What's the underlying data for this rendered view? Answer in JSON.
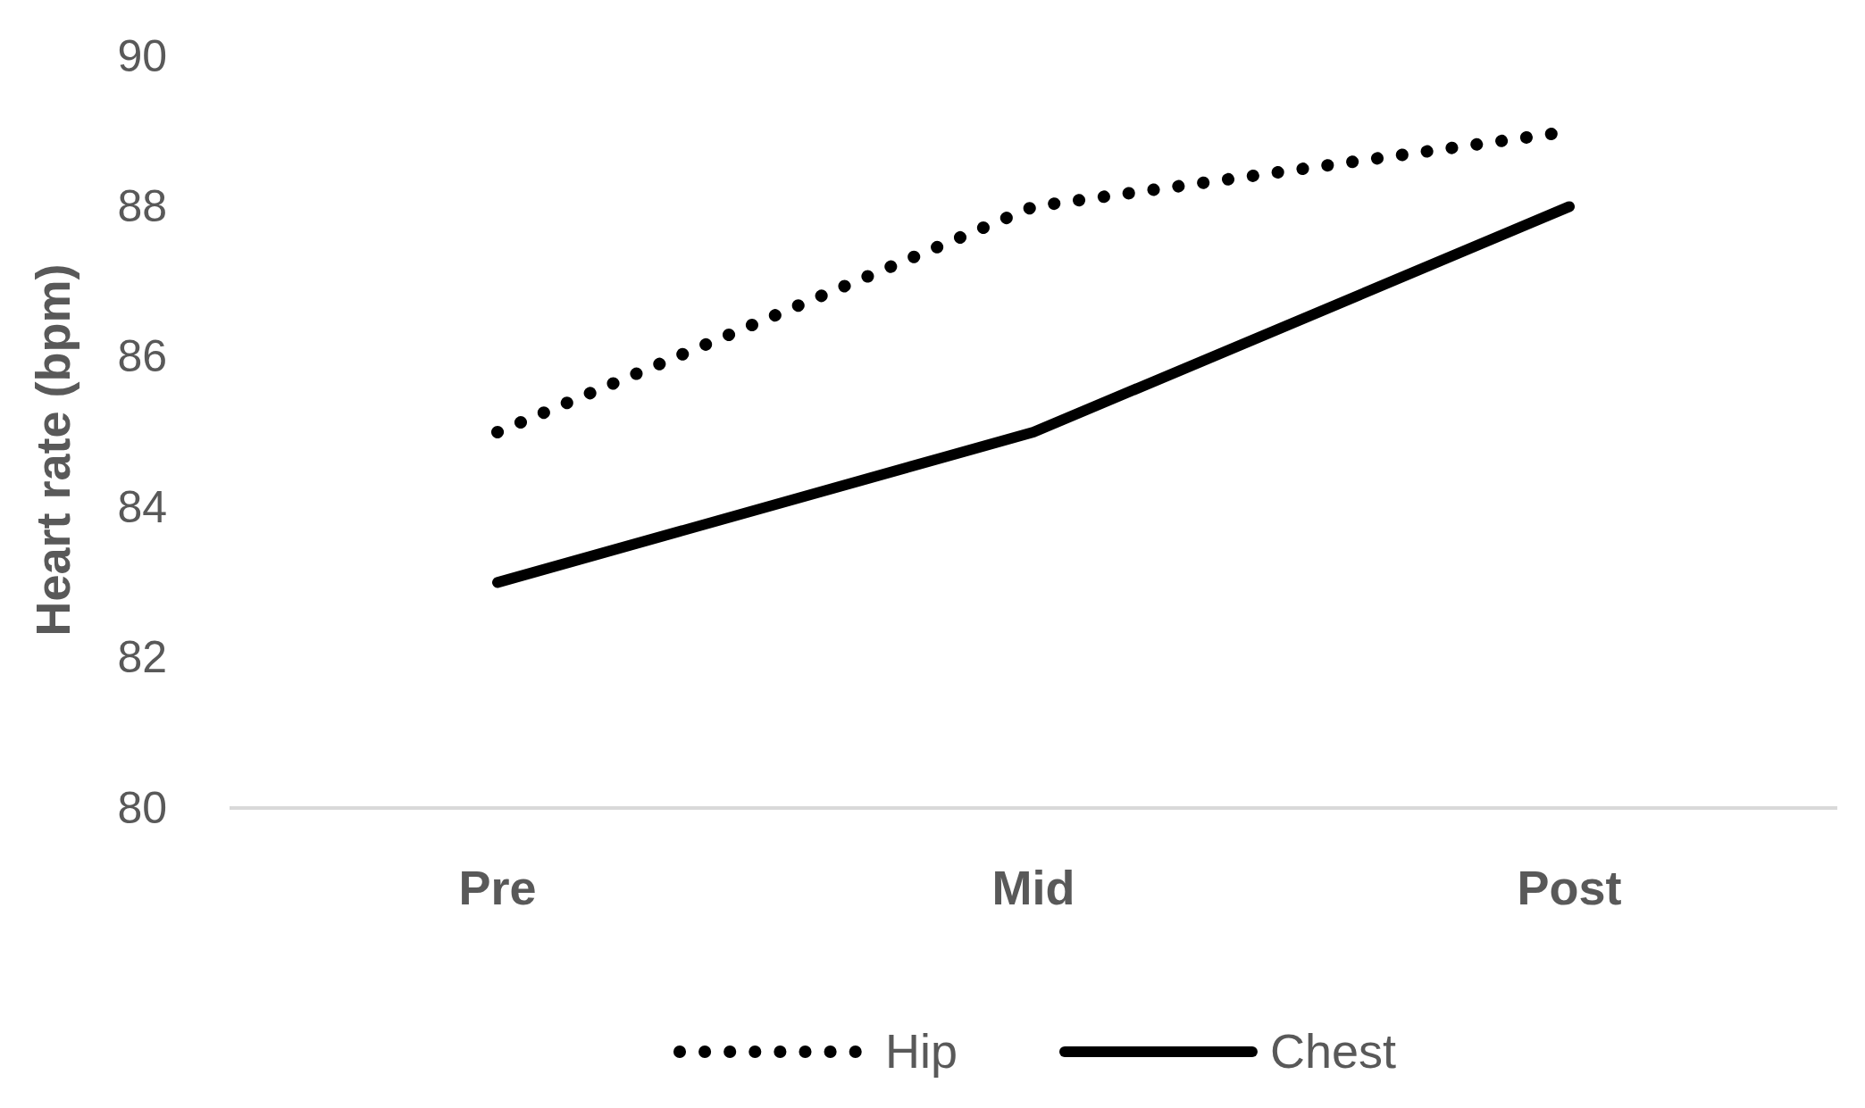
{
  "chart_data": {
    "type": "line",
    "ylabel": "Heart rate (bpm)",
    "categories": [
      "Pre",
      "Mid",
      "Post"
    ],
    "series": [
      {
        "name": "Hip",
        "color": "#000000",
        "values": [
          85,
          88,
          89
        ],
        "line_style": "dotted"
      },
      {
        "name": "Chest",
        "color": "#000000",
        "values": [
          83,
          85,
          88
        ],
        "line_style": "solid"
      }
    ],
    "ylim": [
      80,
      90
    ],
    "yticks": [
      80,
      82,
      84,
      86,
      88,
      90
    ],
    "grid": false,
    "legend": "bottom",
    "marker": "none"
  }
}
